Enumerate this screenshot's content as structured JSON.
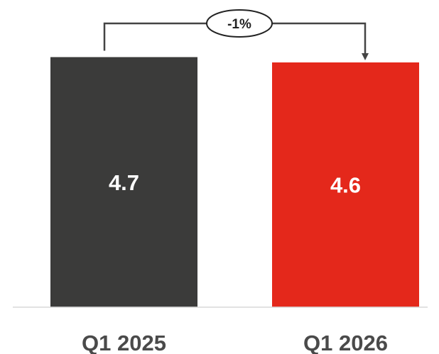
{
  "chart_data": {
    "type": "bar",
    "categories": [
      "Q1 2025",
      "Q1 2026"
    ],
    "values": [
      4.7,
      4.6
    ],
    "data_labels": [
      "4.7",
      "4.6"
    ],
    "colors": [
      "#3b3b3a",
      "#e4281b"
    ],
    "change_annotation": {
      "from": "Q1 2025",
      "to": "Q1 2026",
      "label": "-1%"
    },
    "title": "",
    "xlabel": "",
    "ylabel": "",
    "grid": false,
    "legend": "none"
  },
  "colors": {
    "axis": "#d9d9d9",
    "connector": "#444444",
    "category_text": "#4a4a4a",
    "bar_text": "#ffffff"
  }
}
